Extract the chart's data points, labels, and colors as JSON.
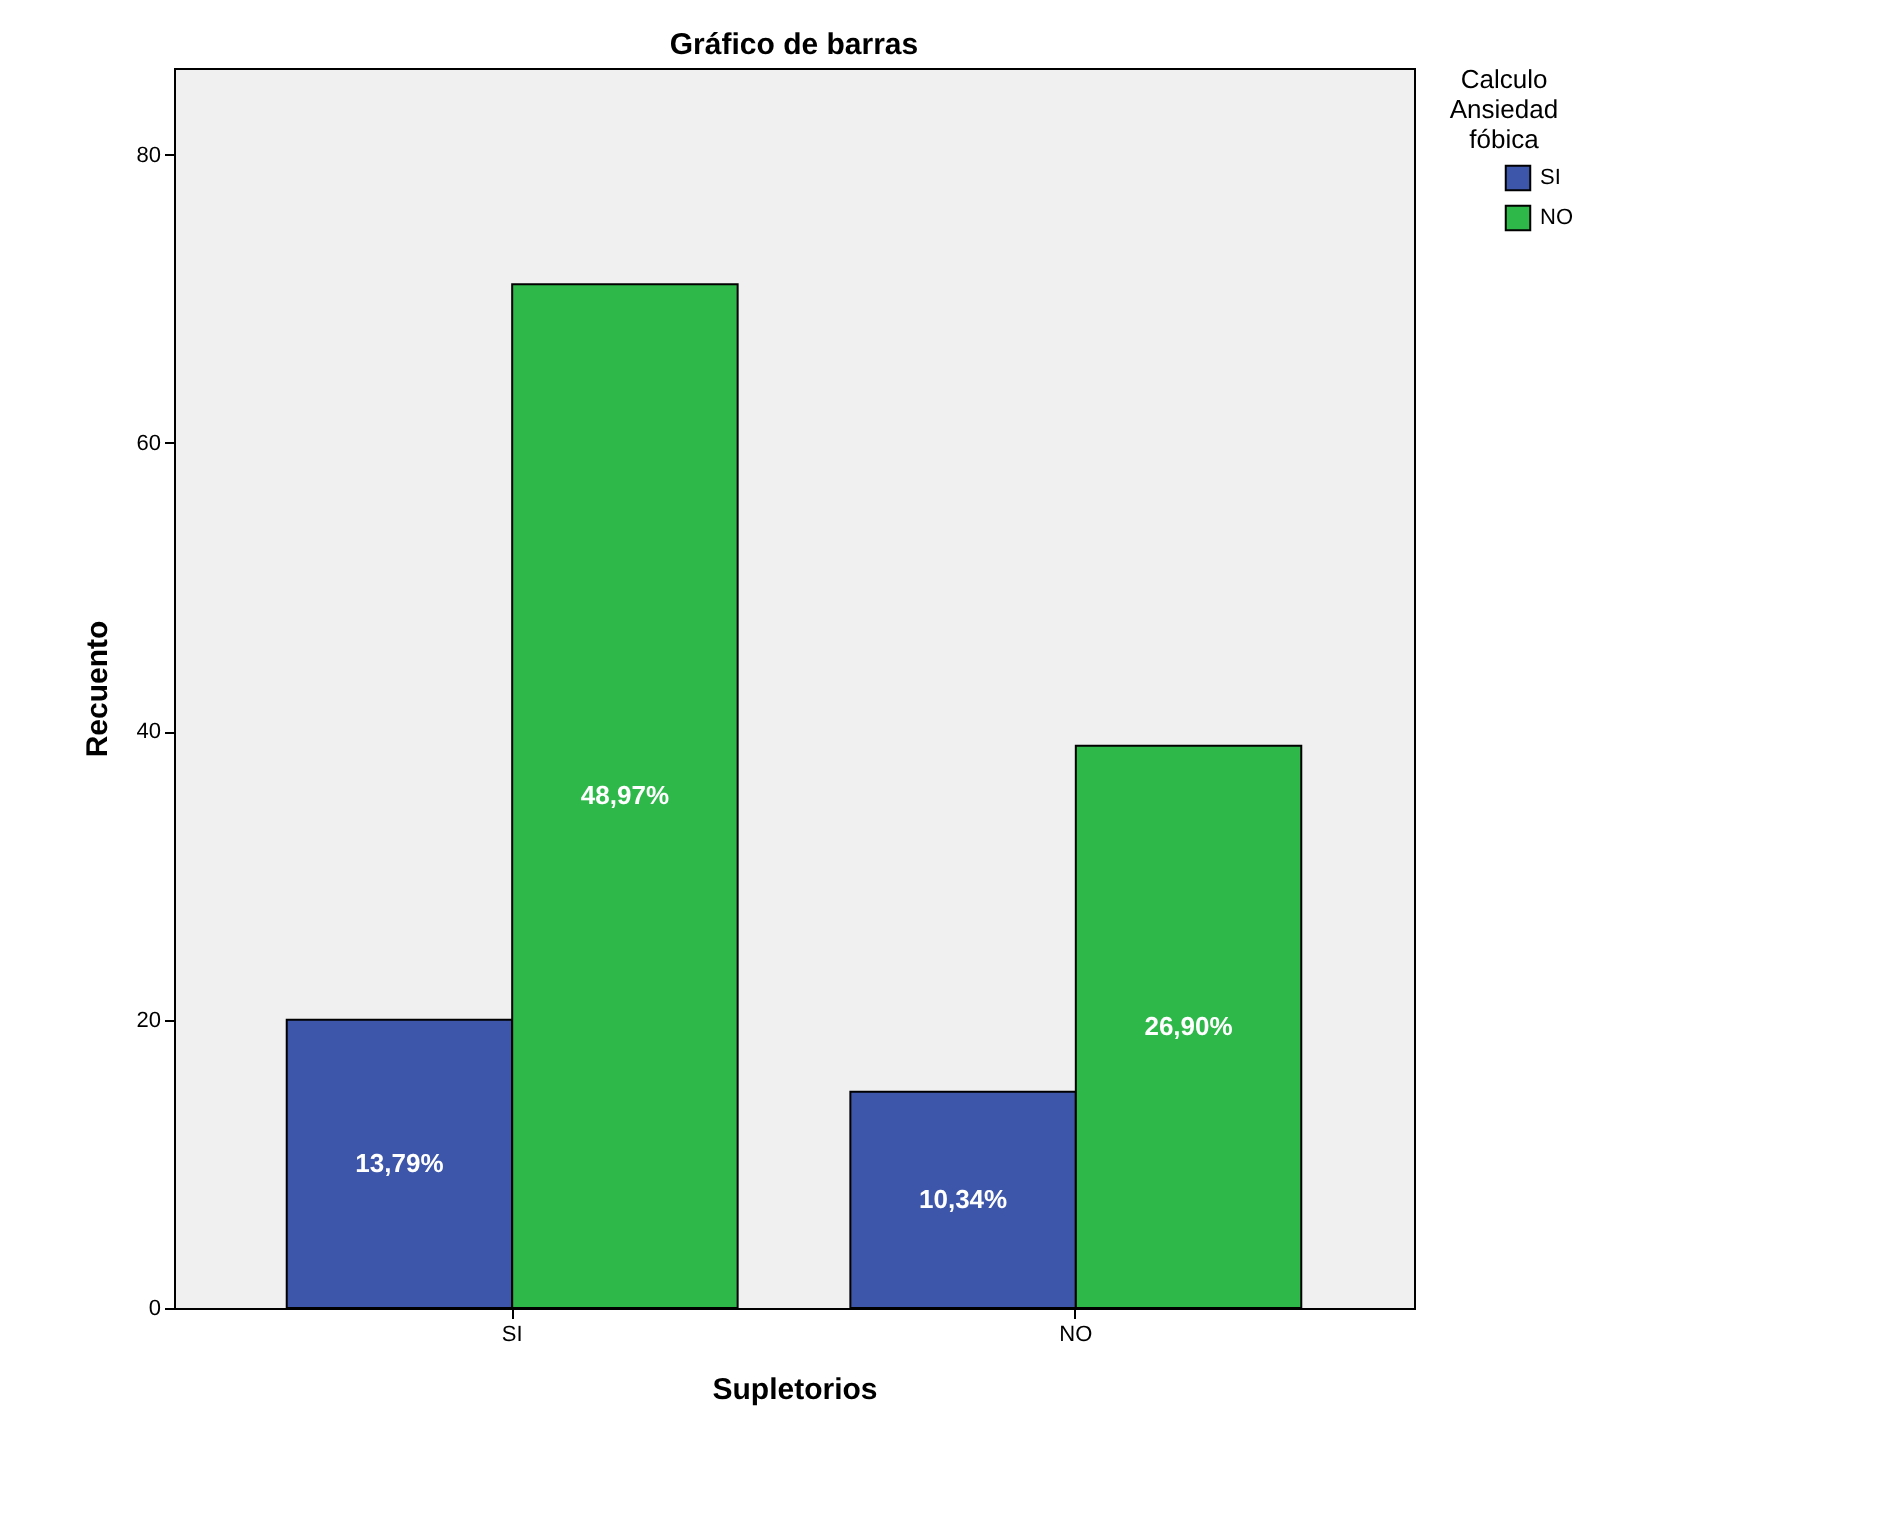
{
  "chart_data": {
    "type": "bar",
    "title": "Gráfico de barras",
    "xlabel": "Supletorios",
    "ylabel": "Recuento",
    "legend_title": "Calculo Ansiedad fóbica",
    "categories": [
      "SI",
      "NO"
    ],
    "series": [
      {
        "name": "SI",
        "color": "#3e56aa",
        "values": [
          20,
          15
        ]
      },
      {
        "name": "NO",
        "color": "#2eb84a",
        "values": [
          71,
          39
        ]
      }
    ],
    "annotations": [
      "13,79%",
      "10,34%",
      "48,97%",
      "26,90%"
    ],
    "ylim": [
      0,
      86
    ],
    "yticks": [
      0,
      20,
      40,
      60,
      80
    ],
    "grid": false,
    "legend": "top right"
  }
}
